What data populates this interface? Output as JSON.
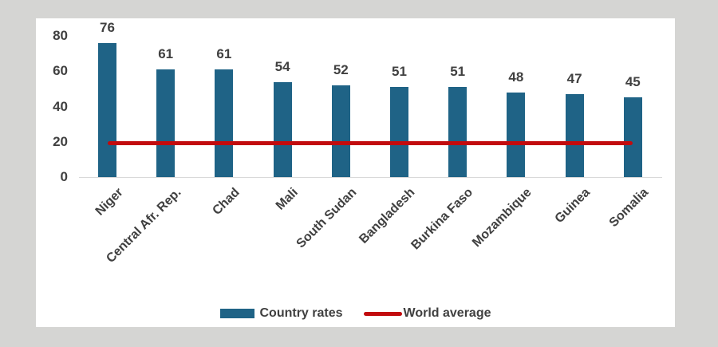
{
  "colors": {
    "page_background": "#d5d5d3",
    "panel_background": "#ffffff",
    "bar": "#1f6386",
    "line": "#c20b0e",
    "text": "#404040",
    "axis_line": "#d9d9d9"
  },
  "chart_data": {
    "type": "bar",
    "title": "",
    "xlabel": "",
    "ylabel": "",
    "categories": [
      "Niger",
      "Central Afr. Rep.",
      "Chad",
      "Mali",
      "South Sudan",
      "Bangladesh",
      "Burkina Faso",
      "Mozambique",
      "Guinea",
      "Somalia"
    ],
    "series": [
      {
        "name": "Country rates",
        "type": "bar",
        "color": "#1f6386",
        "values": [
          76,
          61,
          61,
          54,
          52,
          51,
          51,
          48,
          47,
          45
        ]
      },
      {
        "name": "World average",
        "type": "line",
        "color": "#c20b0e",
        "values": [
          19,
          19,
          19,
          19,
          19,
          19,
          19,
          19,
          19,
          19
        ]
      }
    ],
    "value_labels": [
      76,
      61,
      61,
      54,
      52,
      51,
      51,
      48,
      47,
      45
    ],
    "yticks": [
      0,
      20,
      40,
      60,
      80
    ],
    "ylim": [
      0,
      80
    ],
    "grid": false,
    "legend_position": "bottom"
  },
  "legend": {
    "items": [
      {
        "label": "Country rates",
        "swatch": "bar"
      },
      {
        "label": "World average",
        "swatch": "line"
      }
    ]
  }
}
